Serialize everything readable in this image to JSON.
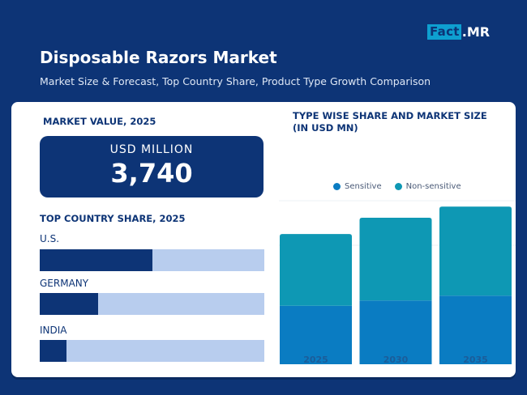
{
  "brand": {
    "fact": "Fact",
    "mr": ".MR"
  },
  "header": {
    "title": "Disposable Razors Market",
    "subtitle": "Market Size & Forecast, Top Country Share, Product Type Growth Comparison"
  },
  "market_value": {
    "label": "MARKET VALUE, 2025",
    "unit": "USD MILLION",
    "value": "3,740"
  },
  "country_share": {
    "label": "TOP COUNTRY SHARE, 2025",
    "countries": [
      {
        "name": "U.S.",
        "share": 0.5
      },
      {
        "name": "GERMANY",
        "share": 0.26
      },
      {
        "name": "INDIA",
        "share": 0.12
      }
    ]
  },
  "colors": {
    "navy": "#0d3476",
    "track": "#b8cdee",
    "sensitive": "#0a7cc2",
    "non_sensitive": "#0e98b4",
    "logo_accent": "#0e9fd0"
  },
  "chart_data": {
    "type": "bar",
    "stacked": true,
    "title": "TYPE WISE SHARE AND MARKET SIZE (IN USD MN)",
    "categories": [
      "2025",
      "2030",
      "2035"
    ],
    "series": [
      {
        "name": "Sensitive",
        "values": [
          1680,
          1830,
          1970
        ]
      },
      {
        "name": "Non-sensitive",
        "values": [
          2060,
          2380,
          2560
        ]
      }
    ],
    "ylim": [
      0,
      6000
    ],
    "legend": "top-center",
    "grid": true
  }
}
